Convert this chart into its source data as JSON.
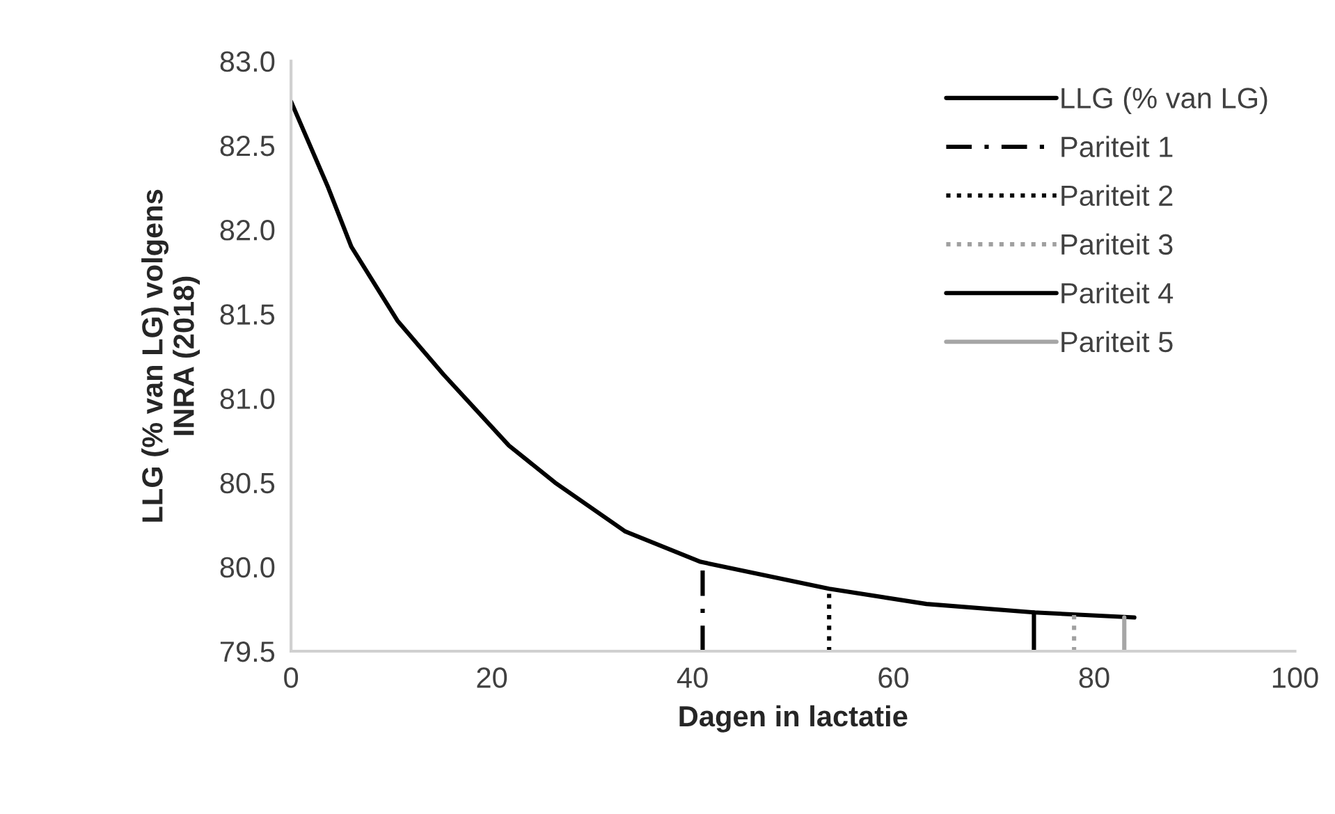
{
  "chart_data": {
    "type": "line",
    "xlabel": "Dagen in lactatie",
    "ylabel": "LLG (% van LG) volgens\nINRA (2018)",
    "xlim": [
      0,
      100
    ],
    "xticks": [
      0,
      20,
      40,
      60,
      80,
      100
    ],
    "ylim": [
      79.5,
      83.0
    ],
    "yticks": [
      {
        "value": 79.5,
        "label": "79.5"
      },
      {
        "value": 80.0,
        "label": "80.0"
      },
      {
        "value": 80.5,
        "label": "80.5"
      },
      {
        "value": 81.0,
        "label": "81.0"
      },
      {
        "value": 81.5,
        "label": "81.5"
      },
      {
        "value": 82.0,
        "label": "82.0"
      },
      {
        "value": 82.5,
        "label": "82.5"
      },
      {
        "value": 83.0,
        "label": "83.0"
      }
    ],
    "grid": false,
    "legend": "top right",
    "marker": "none",
    "series": [
      {
        "name": "LLG (% van LG)",
        "color": "#000000",
        "line_style": "solid",
        "x": [
          0,
          3.7,
          6.0,
          10.6,
          15.2,
          21.7,
          26.3,
          33.3,
          40.8,
          53.6,
          63.3,
          74,
          84
        ],
        "values": [
          82.76,
          82.25,
          81.9,
          81.46,
          81.14,
          80.72,
          80.5,
          80.21,
          80.03,
          79.87,
          79.78,
          79.73,
          79.7
        ]
      },
      {
        "name": "Pariteit 1",
        "color": "#000000",
        "line_style": "dashdot",
        "x": [
          41,
          41
        ],
        "values": [
          79.5,
          80.03
        ]
      },
      {
        "name": "Pariteit 2",
        "color": "#000000",
        "line_style": "dotted",
        "x": [
          53.6,
          53.6
        ],
        "values": [
          79.5,
          79.87
        ]
      },
      {
        "name": "Pariteit 3",
        "color": "#a0a0a0",
        "line_style": "dotted",
        "x": [
          78,
          78
        ],
        "values": [
          79.5,
          79.72
        ]
      },
      {
        "name": "Pariteit 4",
        "color": "#000000",
        "line_style": "solid",
        "x": [
          74,
          74
        ],
        "values": [
          79.5,
          79.73
        ]
      },
      {
        "name": "Pariteit 5",
        "color": "#a6a6a6",
        "line_style": "solid",
        "x": [
          83,
          83
        ],
        "values": [
          79.5,
          79.7
        ]
      }
    ]
  }
}
